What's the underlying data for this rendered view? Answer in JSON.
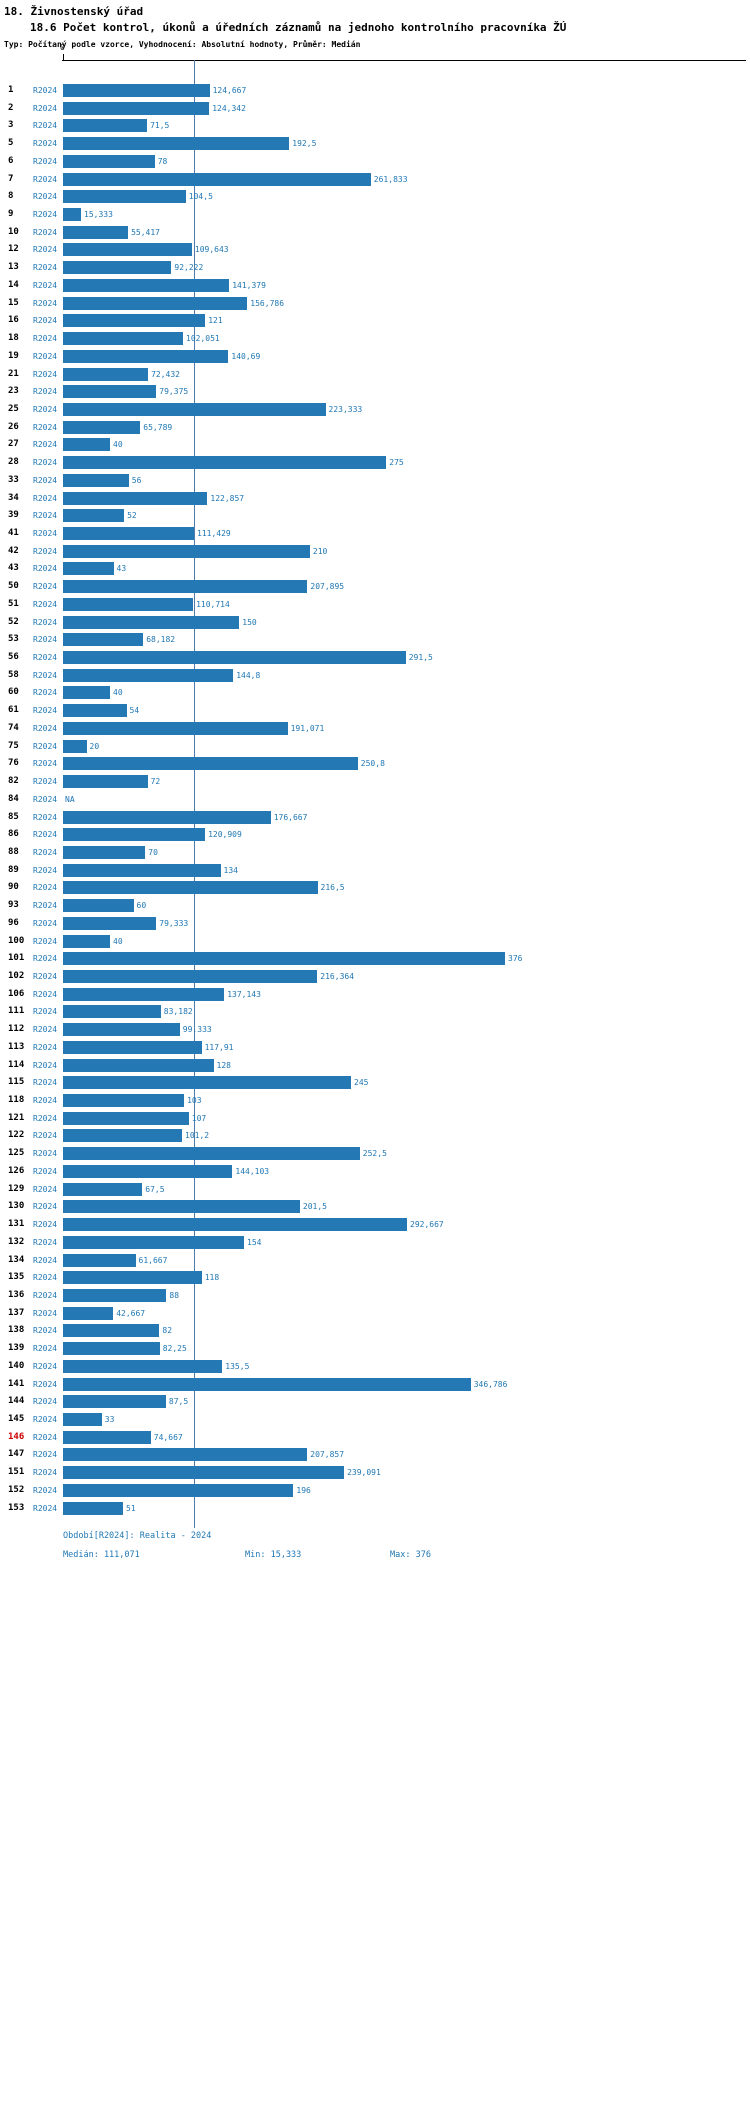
{
  "header": {
    "title": "18. Živnostenský úřad",
    "subtitle": "18.6 Počet kontrol, úkonů a úředních záznamů na jednoho kontrolního pracovníka ŽÚ",
    "meta": "Typ: Počítaný podle vzorce, Vyhodnocení: Absolutní hodnoty, Průměr: Medián"
  },
  "axis": {
    "zero_label": "0"
  },
  "footer": {
    "period": "Období[R2024]: Realita - 2024",
    "median": "Medián: 111,071",
    "min": "Min: 15,333",
    "max": "Max: 376"
  },
  "colors": {
    "bar": "#2478b4",
    "blue_text": "#1f77b4",
    "highlight_row_id": "#cc0000",
    "median_line": "#4f7cac",
    "axis": "#000000",
    "background": "#ffffff"
  },
  "chart_data": {
    "type": "bar",
    "orientation": "horizontal",
    "title": "18.6 Počet kontrol, úkonů a úředních záznamů na jednoho kontrolního pracovníka ŽÚ",
    "series_label": "R2024",
    "xlim": [
      0,
      376
    ],
    "grid": false,
    "legend_position": "none",
    "stats": {
      "median": 111.071,
      "min": 15.333,
      "max": 376
    },
    "rows": [
      {
        "id": "1",
        "period": "R2024",
        "value_label": "124,667",
        "value": 124.667
      },
      {
        "id": "2",
        "period": "R2024",
        "value_label": "124,342",
        "value": 124.342
      },
      {
        "id": "3",
        "period": "R2024",
        "value_label": "71,5",
        "value": 71.5
      },
      {
        "id": "5",
        "period": "R2024",
        "value_label": "192,5",
        "value": 192.5
      },
      {
        "id": "6",
        "period": "R2024",
        "value_label": "78",
        "value": 78
      },
      {
        "id": "7",
        "period": "R2024",
        "value_label": "261,833",
        "value": 261.833
      },
      {
        "id": "8",
        "period": "R2024",
        "value_label": "104,5",
        "value": 104.5
      },
      {
        "id": "9",
        "period": "R2024",
        "value_label": "15,333",
        "value": 15.333
      },
      {
        "id": "10",
        "period": "R2024",
        "value_label": "55,417",
        "value": 55.417
      },
      {
        "id": "12",
        "period": "R2024",
        "value_label": "109,643",
        "value": 109.643
      },
      {
        "id": "13",
        "period": "R2024",
        "value_label": "92,222",
        "value": 92.222
      },
      {
        "id": "14",
        "period": "R2024",
        "value_label": "141,379",
        "value": 141.379
      },
      {
        "id": "15",
        "period": "R2024",
        "value_label": "156,786",
        "value": 156.786
      },
      {
        "id": "16",
        "period": "R2024",
        "value_label": "121",
        "value": 121
      },
      {
        "id": "18",
        "period": "R2024",
        "value_label": "102,051",
        "value": 102.051
      },
      {
        "id": "19",
        "period": "R2024",
        "value_label": "140,69",
        "value": 140.69
      },
      {
        "id": "21",
        "period": "R2024",
        "value_label": "72,432",
        "value": 72.432
      },
      {
        "id": "23",
        "period": "R2024",
        "value_label": "79,375",
        "value": 79.375
      },
      {
        "id": "25",
        "period": "R2024",
        "value_label": "223,333",
        "value": 223.333
      },
      {
        "id": "26",
        "period": "R2024",
        "value_label": "65,789",
        "value": 65.789
      },
      {
        "id": "27",
        "period": "R2024",
        "value_label": "40",
        "value": 40
      },
      {
        "id": "28",
        "period": "R2024",
        "value_label": "275",
        "value": 275
      },
      {
        "id": "33",
        "period": "R2024",
        "value_label": "56",
        "value": 56
      },
      {
        "id": "34",
        "period": "R2024",
        "value_label": "122,857",
        "value": 122.857
      },
      {
        "id": "39",
        "period": "R2024",
        "value_label": "52",
        "value": 52
      },
      {
        "id": "41",
        "period": "R2024",
        "value_label": "111,429",
        "value": 111.429
      },
      {
        "id": "42",
        "period": "R2024",
        "value_label": "210",
        "value": 210
      },
      {
        "id": "43",
        "period": "R2024",
        "value_label": "43",
        "value": 43
      },
      {
        "id": "50",
        "period": "R2024",
        "value_label": "207,895",
        "value": 207.895
      },
      {
        "id": "51",
        "period": "R2024",
        "value_label": "110,714",
        "value": 110.714
      },
      {
        "id": "52",
        "period": "R2024",
        "value_label": "150",
        "value": 150
      },
      {
        "id": "53",
        "period": "R2024",
        "value_label": "68,182",
        "value": 68.182
      },
      {
        "id": "56",
        "period": "R2024",
        "value_label": "291,5",
        "value": 291.5
      },
      {
        "id": "58",
        "period": "R2024",
        "value_label": "144,8",
        "value": 144.8
      },
      {
        "id": "60",
        "period": "R2024",
        "value_label": "40",
        "value": 40
      },
      {
        "id": "61",
        "period": "R2024",
        "value_label": "54",
        "value": 54
      },
      {
        "id": "74",
        "period": "R2024",
        "value_label": "191,071",
        "value": 191.071
      },
      {
        "id": "75",
        "period": "R2024",
        "value_label": "20",
        "value": 20
      },
      {
        "id": "76",
        "period": "R2024",
        "value_label": "250,8",
        "value": 250.8
      },
      {
        "id": "82",
        "period": "R2024",
        "value_label": "72",
        "value": 72
      },
      {
        "id": "84",
        "period": "R2024",
        "value_label": "NA",
        "value": null,
        "na": true
      },
      {
        "id": "85",
        "period": "R2024",
        "value_label": "176,667",
        "value": 176.667
      },
      {
        "id": "86",
        "period": "R2024",
        "value_label": "120,909",
        "value": 120.909
      },
      {
        "id": "88",
        "period": "R2024",
        "value_label": "70",
        "value": 70
      },
      {
        "id": "89",
        "period": "R2024",
        "value_label": "134",
        "value": 134
      },
      {
        "id": "90",
        "period": "R2024",
        "value_label": "216,5",
        "value": 216.5
      },
      {
        "id": "93",
        "period": "R2024",
        "value_label": "60",
        "value": 60
      },
      {
        "id": "96",
        "period": "R2024",
        "value_label": "79,333",
        "value": 79.333
      },
      {
        "id": "100",
        "period": "R2024",
        "value_label": "40",
        "value": 40
      },
      {
        "id": "101",
        "period": "R2024",
        "value_label": "376",
        "value": 376
      },
      {
        "id": "102",
        "period": "R2024",
        "value_label": "216,364",
        "value": 216.364
      },
      {
        "id": "106",
        "period": "R2024",
        "value_label": "137,143",
        "value": 137.143
      },
      {
        "id": "111",
        "period": "R2024",
        "value_label": "83,182",
        "value": 83.182
      },
      {
        "id": "112",
        "period": "R2024",
        "value_label": "99,333",
        "value": 99.333
      },
      {
        "id": "113",
        "period": "R2024",
        "value_label": "117,91",
        "value": 117.91
      },
      {
        "id": "114",
        "period": "R2024",
        "value_label": "128",
        "value": 128
      },
      {
        "id": "115",
        "period": "R2024",
        "value_label": "245",
        "value": 245
      },
      {
        "id": "118",
        "period": "R2024",
        "value_label": "103",
        "value": 103
      },
      {
        "id": "121",
        "period": "R2024",
        "value_label": "107",
        "value": 107
      },
      {
        "id": "122",
        "period": "R2024",
        "value_label": "101,2",
        "value": 101.2
      },
      {
        "id": "125",
        "period": "R2024",
        "value_label": "252,5",
        "value": 252.5
      },
      {
        "id": "126",
        "period": "R2024",
        "value_label": "144,103",
        "value": 144.103
      },
      {
        "id": "129",
        "period": "R2024",
        "value_label": "67,5",
        "value": 67.5
      },
      {
        "id": "130",
        "period": "R2024",
        "value_label": "201,5",
        "value": 201.5
      },
      {
        "id": "131",
        "period": "R2024",
        "value_label": "292,667",
        "value": 292.667
      },
      {
        "id": "132",
        "period": "R2024",
        "value_label": "154",
        "value": 154
      },
      {
        "id": "134",
        "period": "R2024",
        "value_label": "61,667",
        "value": 61.667
      },
      {
        "id": "135",
        "period": "R2024",
        "value_label": "118",
        "value": 118
      },
      {
        "id": "136",
        "period": "R2024",
        "value_label": "88",
        "value": 88
      },
      {
        "id": "137",
        "period": "R2024",
        "value_label": "42,667",
        "value": 42.667
      },
      {
        "id": "138",
        "period": "R2024",
        "value_label": "82",
        "value": 82
      },
      {
        "id": "139",
        "period": "R2024",
        "value_label": "82,25",
        "value": 82.25
      },
      {
        "id": "140",
        "period": "R2024",
        "value_label": "135,5",
        "value": 135.5
      },
      {
        "id": "141",
        "period": "R2024",
        "value_label": "346,786",
        "value": 346.786
      },
      {
        "id": "144",
        "period": "R2024",
        "value_label": "87,5",
        "value": 87.5
      },
      {
        "id": "145",
        "period": "R2024",
        "value_label": "33",
        "value": 33
      },
      {
        "id": "146",
        "period": "R2024",
        "value_label": "74,667",
        "value": 74.667,
        "highlight": true
      },
      {
        "id": "147",
        "period": "R2024",
        "value_label": "207,857",
        "value": 207.857
      },
      {
        "id": "151",
        "period": "R2024",
        "value_label": "239,091",
        "value": 239.091
      },
      {
        "id": "152",
        "period": "R2024",
        "value_label": "196",
        "value": 196
      },
      {
        "id": "153",
        "period": "R2024",
        "value_label": "51",
        "value": 51
      }
    ]
  }
}
